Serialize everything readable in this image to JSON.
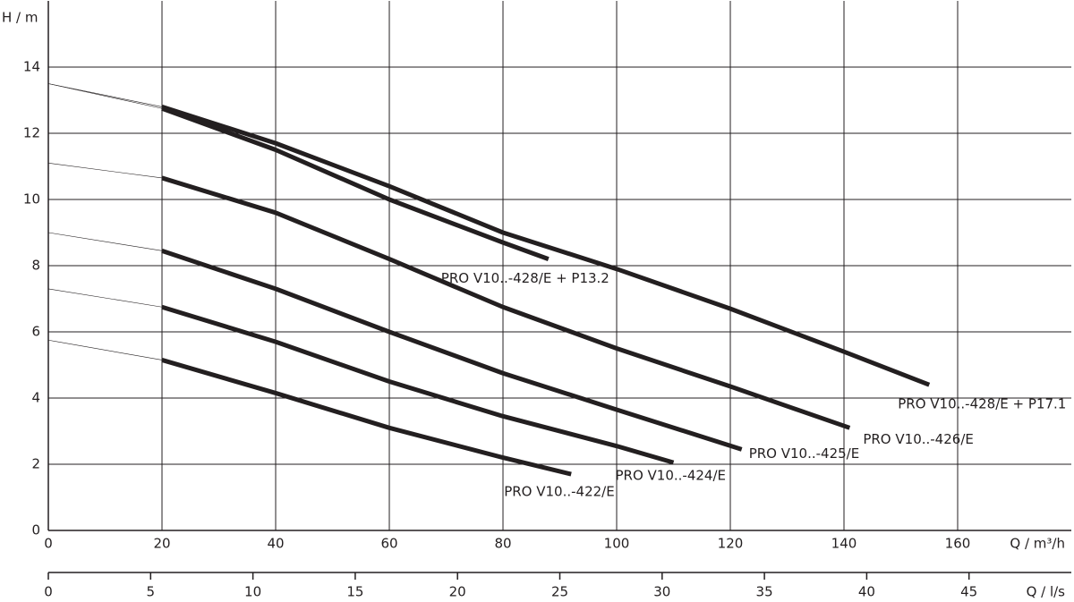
{
  "chart_data": {
    "type": "line",
    "y_label": "H / m",
    "x_label": "Q / m³/h",
    "x2_label": "Q / l/s",
    "xlim": [
      0,
      180
    ],
    "xticks": [
      0,
      20,
      40,
      60,
      80,
      100,
      120,
      140,
      160
    ],
    "x2lim": [
      0,
      50
    ],
    "x2ticks": [
      0,
      5,
      10,
      15,
      20,
      25,
      30,
      35,
      40,
      45
    ],
    "ylim": [
      0,
      16
    ],
    "yticks": [
      0,
      2,
      4,
      6,
      8,
      10,
      12,
      14
    ],
    "grid": true,
    "series": [
      {
        "name": "PRO V10..-428/E + P17.1",
        "color": "#231f20",
        "x": [
          0,
          20,
          40,
          60,
          80,
          100,
          120,
          140,
          155
        ],
        "values": [
          13.5,
          12.8,
          11.7,
          10.4,
          9.0,
          7.9,
          6.7,
          5.4,
          4.4
        ]
      },
      {
        "name": "PRO V10..-428/E + P13.2",
        "color": "#231f20",
        "x": [
          0,
          20,
          40,
          60,
          80,
          88
        ],
        "values": [
          13.5,
          12.75,
          11.5,
          10.0,
          8.7,
          8.2
        ]
      },
      {
        "name": "PRO V10..-426/E",
        "color": "#231f20",
        "x": [
          0,
          20,
          40,
          60,
          80,
          100,
          120,
          141
        ],
        "values": [
          11.1,
          10.65,
          9.6,
          8.2,
          6.75,
          5.5,
          4.35,
          3.1
        ]
      },
      {
        "name": "PRO V10..-425/E",
        "color": "#231f20",
        "x": [
          0,
          20,
          40,
          60,
          80,
          100,
          122
        ],
        "values": [
          9.0,
          8.45,
          7.3,
          6.0,
          4.75,
          3.65,
          2.45
        ]
      },
      {
        "name": "PRO V10..-424/E",
        "color": "#231f20",
        "x": [
          0,
          20,
          40,
          60,
          80,
          100,
          110
        ],
        "values": [
          7.3,
          6.75,
          5.7,
          4.5,
          3.45,
          2.55,
          2.05
        ]
      },
      {
        "name": "PRO V10..-422/E",
        "color": "#231f20",
        "x": [
          0,
          20,
          40,
          60,
          80,
          92
        ],
        "values": [
          5.75,
          5.15,
          4.15,
          3.1,
          2.2,
          1.7
        ]
      }
    ]
  }
}
